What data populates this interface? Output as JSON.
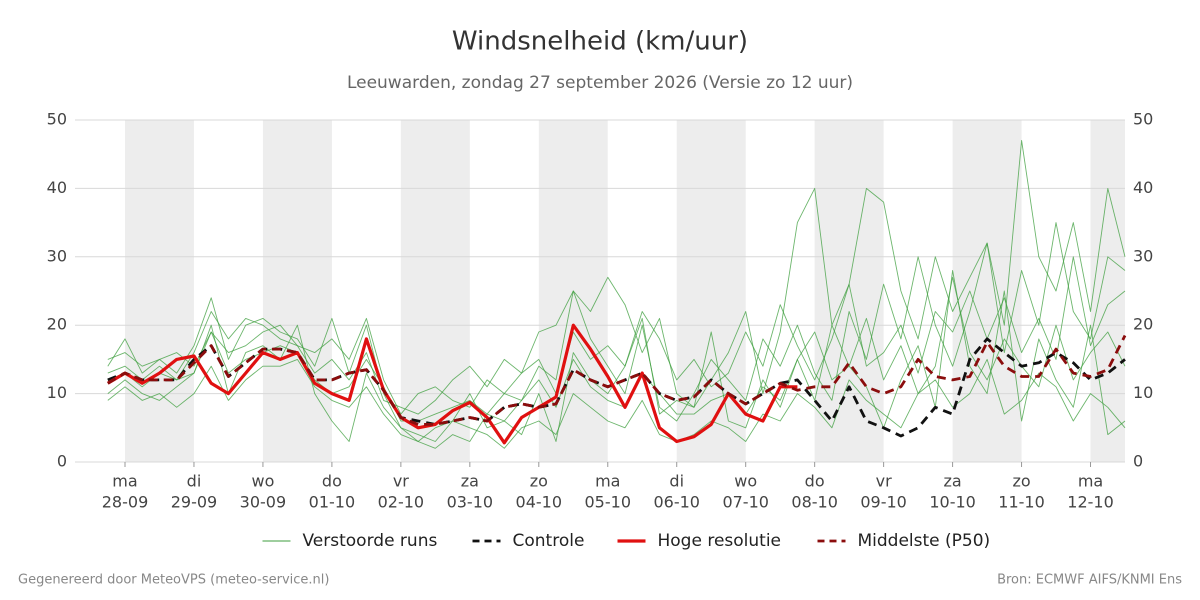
{
  "chart_data": {
    "type": "line",
    "title": "Windsnelheid (km/uur)",
    "subtitle": "Leeuwarden, zondag 27 september 2026 (Versie zo 12 uur)",
    "footer_left": "Gegenereerd door MeteoVPS (meteo-service.nl)",
    "footer_right": "Bron: ECMWF AIFS/KNMI Ens",
    "x": [
      -0.25,
      0,
      0.25,
      0.5,
      0.75,
      1,
      1.25,
      1.5,
      1.75,
      2,
      2.25,
      2.5,
      2.75,
      3,
      3.25,
      3.5,
      3.75,
      4,
      4.25,
      4.5,
      4.75,
      5,
      5.25,
      5.5,
      5.75,
      6,
      6.25,
      6.5,
      6.75,
      7,
      7.25,
      7.5,
      7.75,
      8,
      8.25,
      8.5,
      8.75,
      9,
      9.25,
      9.5,
      9.75,
      10,
      10.25,
      10.5,
      10.75,
      11,
      11.25,
      11.5,
      11.75,
      12,
      12.25,
      12.5,
      12.75,
      13,
      13.25,
      13.5,
      13.75,
      14,
      14.25,
      14.5
    ],
    "xlim": [
      -0.725,
      14.5
    ],
    "xticks": [
      {
        "value": 0,
        "label": "ma",
        "date": "28-09"
      },
      {
        "value": 1,
        "label": "di",
        "date": "29-09"
      },
      {
        "value": 2,
        "label": "wo",
        "date": "30-09"
      },
      {
        "value": 3,
        "label": "do",
        "date": "01-10"
      },
      {
        "value": 4,
        "label": "vr",
        "date": "02-10"
      },
      {
        "value": 5,
        "label": "za",
        "date": "03-10"
      },
      {
        "value": 6,
        "label": "zo",
        "date": "04-10"
      },
      {
        "value": 7,
        "label": "ma",
        "date": "05-10"
      },
      {
        "value": 8,
        "label": "di",
        "date": "06-10"
      },
      {
        "value": 9,
        "label": "wo",
        "date": "07-10"
      },
      {
        "value": 10,
        "label": "do",
        "date": "08-10"
      },
      {
        "value": 11,
        "label": "vr",
        "date": "09-10"
      },
      {
        "value": 12,
        "label": "za",
        "date": "10-10"
      },
      {
        "value": 13,
        "label": "zo",
        "date": "11-10"
      },
      {
        "value": 14,
        "label": "ma",
        "date": "12-10"
      }
    ],
    "ylim": [
      0,
      50
    ],
    "yticks": [
      0,
      10,
      20,
      30,
      40,
      50
    ],
    "grid": true,
    "series": [
      {
        "name": "Verstoorde runs",
        "color": "#3c9e3c",
        "style": "thin",
        "values": [
          [
            14,
            18,
            13,
            15,
            13,
            17,
            24,
            15,
            20,
            21,
            19,
            18,
            14,
            21,
            13,
            20,
            10,
            5,
            4,
            3,
            6,
            10,
            5,
            6,
            9,
            14,
            12,
            25,
            18,
            14,
            10,
            20,
            8,
            6,
            10,
            15,
            12,
            9,
            18,
            14,
            20,
            13,
            9,
            22,
            15,
            26,
            18,
            30,
            20,
            14,
            22,
            32,
            16,
            28,
            20,
            35,
            22,
            18,
            30,
            28
          ],
          [
            10,
            12,
            10,
            9,
            11,
            13,
            20,
            10,
            16,
            17,
            15,
            20,
            10,
            6,
            3,
            13,
            8,
            5,
            3,
            2,
            4,
            3,
            7,
            6,
            4,
            10,
            3,
            16,
            12,
            10,
            14,
            21,
            7,
            9,
            8,
            19,
            6,
            5,
            12,
            8,
            15,
            9,
            20,
            14,
            11,
            5,
            12,
            17,
            8,
            28,
            14,
            10,
            25,
            6,
            18,
            12,
            8,
            20,
            4,
            6
          ],
          [
            13,
            14,
            12,
            14,
            12,
            16,
            22,
            18,
            21,
            20,
            18,
            17,
            13,
            15,
            12,
            16,
            9,
            8,
            7,
            9,
            12,
            14,
            11,
            15,
            13,
            19,
            20,
            25,
            22,
            27,
            23,
            16,
            21,
            10,
            8,
            12,
            16,
            22,
            10,
            19,
            35,
            40,
            20,
            26,
            40,
            38,
            25,
            18,
            30,
            22,
            27,
            32,
            20,
            47,
            30,
            25,
            35,
            22,
            40,
            30
          ],
          [
            9,
            11,
            9,
            10,
            8,
            10,
            14,
            9,
            12,
            14,
            14,
            15,
            11,
            9,
            8,
            11,
            7,
            4,
            3,
            5,
            6,
            5,
            4,
            2,
            5,
            6,
            4,
            10,
            8,
            6,
            5,
            9,
            4,
            3,
            4,
            6,
            5,
            3,
            7,
            6,
            10,
            8,
            5,
            12,
            9,
            7,
            5,
            10,
            12,
            8,
            10,
            15,
            7,
            9,
            13,
            11,
            6,
            10,
            8,
            5
          ],
          [
            15,
            16,
            14,
            15,
            16,
            14,
            19,
            16,
            17,
            19,
            20,
            17,
            16,
            18,
            15,
            21,
            12,
            7,
            10,
            11,
            9,
            8,
            12,
            10,
            13,
            15,
            10,
            19,
            15,
            17,
            14,
            22,
            18,
            12,
            15,
            11,
            13,
            19,
            14,
            23,
            17,
            12,
            18,
            26,
            14,
            16,
            20,
            13,
            22,
            19,
            25,
            18,
            24,
            16,
            21,
            15,
            30,
            17,
            23,
            25
          ],
          [
            12,
            13,
            11,
            13,
            12,
            13,
            19,
            13,
            15,
            16,
            17,
            16,
            12,
            10,
            11,
            15,
            11,
            6,
            6,
            7,
            8,
            9,
            7,
            10,
            9,
            12,
            8,
            15,
            11,
            9,
            8,
            13,
            10,
            7,
            7,
            9,
            10,
            7,
            11,
            9,
            15,
            19,
            12,
            14,
            21,
            12,
            17,
            10,
            14,
            27,
            16,
            12,
            18,
            14,
            11,
            20,
            12,
            16,
            19,
            14
          ]
        ]
      },
      {
        "name": "Controle",
        "color": "#111111",
        "style": "dashed",
        "values": [
          12,
          13,
          12,
          12,
          12,
          15,
          17,
          12.5,
          14.5,
          16.5,
          16.5,
          16,
          12,
          12,
          13,
          13.5,
          10.5,
          6.5,
          6,
          5.5,
          6,
          6.5,
          6,
          8,
          8.5,
          8,
          8.5,
          13.5,
          12,
          11,
          12,
          13,
          10,
          9,
          9.5,
          12,
          10,
          8.5,
          10,
          11.5,
          12,
          9,
          6,
          11,
          6,
          5,
          3.8,
          5,
          8,
          7,
          15,
          18,
          16,
          14,
          14.5,
          16,
          14.5,
          12,
          13,
          15
        ]
      },
      {
        "name": "Hoge resolutie",
        "color": "#e01010",
        "style": "thick",
        "values": [
          11.5,
          13,
          11.5,
          13,
          15,
          15.5,
          11.5,
          10,
          13,
          16,
          15,
          16,
          11.5,
          10,
          9,
          18,
          10.5,
          6.5,
          5,
          5.5,
          7.5,
          8.7,
          6.5,
          2.8,
          6.5,
          8,
          9.5,
          20,
          16.5,
          12.5,
          8,
          13,
          5,
          3,
          3.7,
          5.5,
          10,
          7,
          6,
          11,
          11,
          null,
          null,
          null,
          null,
          null,
          null,
          null,
          null,
          null,
          null,
          null,
          null,
          null,
          null,
          null,
          null,
          null,
          null,
          null
        ]
      },
      {
        "name": "Middelste (P50)",
        "color": "#8b0d0d",
        "style": "dashed",
        "values": [
          11.5,
          13,
          12,
          12,
          12,
          14.5,
          17,
          12.5,
          14.5,
          16.5,
          16.5,
          16,
          12,
          12,
          13,
          13.5,
          10.5,
          6.5,
          5.5,
          5.5,
          6,
          6.5,
          6,
          8,
          8.5,
          8,
          8.5,
          13.5,
          12,
          11,
          12,
          13,
          10,
          9,
          9.5,
          12,
          10,
          8.5,
          10,
          11.5,
          10.5,
          11,
          11,
          14.5,
          11,
          10,
          11,
          15,
          12.5,
          12,
          12.5,
          17.5,
          14,
          12.5,
          12.5,
          16.5,
          13,
          12.5,
          13.5,
          18.5
        ]
      }
    ]
  }
}
